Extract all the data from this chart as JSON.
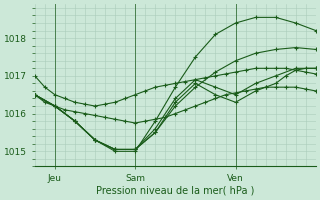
{
  "title": "Pression niveau de la mer( hPa )",
  "bg_color": "#cce8d8",
  "grid_color": "#aaccbb",
  "line_color": "#1a5c1a",
  "ylim": [
    1014.6,
    1018.9
  ],
  "yticks": [
    1015,
    1016,
    1017,
    1018
  ],
  "xtick_labels": [
    "Jeu",
    "Sam",
    "Ven"
  ],
  "xtick_positions": [
    2,
    10,
    20
  ],
  "vline_x": [
    2,
    10,
    20
  ],
  "series": [
    {
      "x": [
        0,
        1,
        2,
        3,
        4,
        5,
        6,
        7,
        8,
        9,
        10,
        11,
        12,
        13,
        14,
        15,
        16,
        17,
        18,
        19,
        20,
        21,
        22,
        23,
        24,
        25,
        26,
        27,
        28
      ],
      "y": [
        1017.0,
        1016.7,
        1016.5,
        1016.4,
        1016.3,
        1016.25,
        1016.2,
        1016.25,
        1016.3,
        1016.4,
        1016.5,
        1016.6,
        1016.7,
        1016.75,
        1016.8,
        1016.85,
        1016.9,
        1016.95,
        1017.0,
        1017.05,
        1017.1,
        1017.15,
        1017.2,
        1017.2,
        1017.2,
        1017.2,
        1017.15,
        1017.1,
        1017.05
      ]
    },
    {
      "x": [
        0,
        1,
        2,
        3,
        4,
        5,
        6,
        7,
        8,
        9,
        10,
        11,
        12,
        13,
        14,
        15,
        16,
        17,
        18,
        19,
        20,
        21,
        22,
        23,
        24,
        25,
        26,
        27,
        28
      ],
      "y": [
        1016.5,
        1016.3,
        1016.2,
        1016.1,
        1016.05,
        1016.0,
        1015.95,
        1015.9,
        1015.85,
        1015.8,
        1015.75,
        1015.8,
        1015.85,
        1015.9,
        1016.0,
        1016.1,
        1016.2,
        1016.3,
        1016.4,
        1016.5,
        1016.55,
        1016.6,
        1016.65,
        1016.7,
        1016.7,
        1016.7,
        1016.7,
        1016.65,
        1016.6
      ]
    },
    {
      "x": [
        0,
        2,
        4,
        6,
        8,
        10,
        12,
        14,
        16,
        18,
        20,
        22,
        24,
        26,
        28
      ],
      "y": [
        1016.5,
        1016.2,
        1015.8,
        1015.3,
        1015.05,
        1015.05,
        1015.5,
        1016.2,
        1016.7,
        1017.1,
        1017.4,
        1017.6,
        1017.7,
        1017.75,
        1017.7
      ]
    },
    {
      "x": [
        0,
        2,
        4,
        6,
        8,
        10,
        12,
        14,
        16,
        18,
        20,
        22,
        24,
        26,
        28
      ],
      "y": [
        1016.5,
        1016.2,
        1015.8,
        1015.3,
        1015.0,
        1015.0,
        1015.8,
        1016.7,
        1017.5,
        1018.1,
        1018.4,
        1018.55,
        1018.55,
        1018.4,
        1018.2
      ]
    },
    {
      "x": [
        0,
        2,
        4,
        6,
        8,
        10,
        12,
        14,
        16,
        18,
        20,
        22,
        23,
        24,
        25,
        26,
        27,
        28
      ],
      "y": [
        1016.5,
        1016.2,
        1015.8,
        1015.3,
        1015.05,
        1015.05,
        1015.5,
        1016.3,
        1016.8,
        1016.5,
        1016.3,
        1016.6,
        1016.7,
        1016.8,
        1017.0,
        1017.15,
        1017.2,
        1017.2
      ]
    },
    {
      "x": [
        0,
        2,
        4,
        6,
        8,
        10,
        12,
        14,
        16,
        18,
        20,
        22,
        24,
        26,
        28
      ],
      "y": [
        1016.5,
        1016.2,
        1015.8,
        1015.3,
        1015.05,
        1015.05,
        1015.6,
        1016.4,
        1016.9,
        1016.7,
        1016.5,
        1016.8,
        1017.0,
        1017.2,
        1017.2
      ]
    }
  ],
  "n_xgrid": 29,
  "xlim": [
    0,
    28
  ]
}
